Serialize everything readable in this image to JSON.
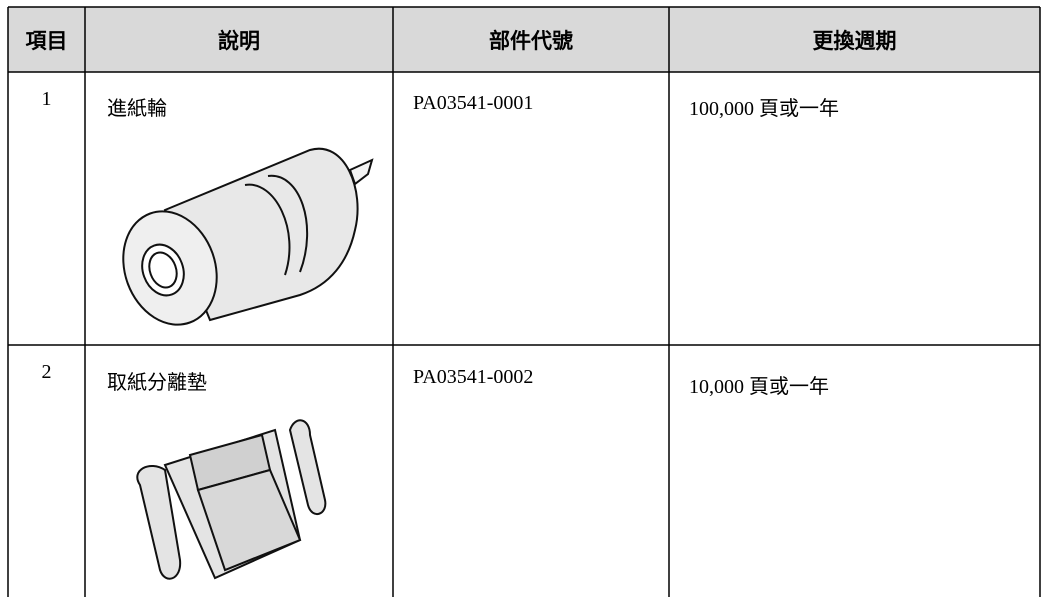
{
  "table": {
    "header": [
      "項目",
      "說明",
      "部件代號",
      "更換週期"
    ],
    "rows": [
      [
        "1",
        "進紙輪",
        "PA03541-0001",
        "100,000 頁或一年"
      ],
      [
        "2",
        "取紙分離墊",
        "PA03541-0002",
        "10,000 頁或一年"
      ]
    ]
  }
}
